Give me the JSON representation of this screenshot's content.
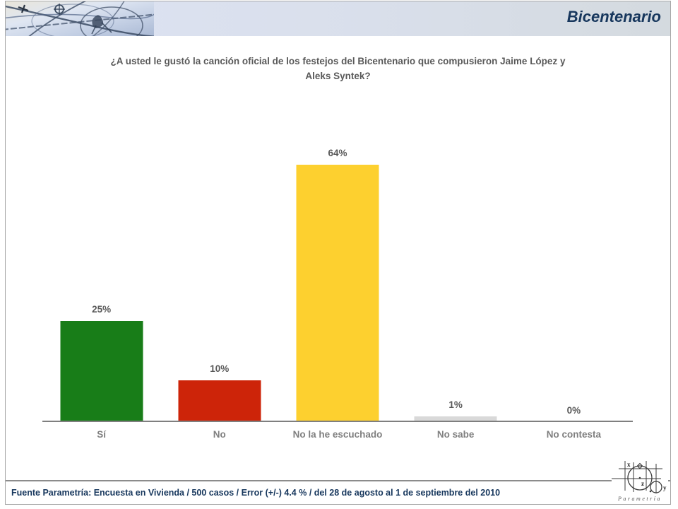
{
  "header": {
    "brand": "Bicentenario",
    "decorative_image": "abstract-pencil-sketch-collage"
  },
  "question": {
    "lines": [
      "¿A usted le gustó la canción oficial de los festejos del Bicentenario que compusieron Jaime López y",
      "Aleks Syntek?"
    ]
  },
  "chart_data": {
    "type": "bar",
    "title": "¿A usted le gustó la canción oficial de los festejos del Bicentenario que compusieron Jaime López y Aleks Syntek?",
    "categories": [
      "Sí",
      "No",
      "No la he escuchado",
      "No sabe",
      "No contesta"
    ],
    "values": [
      25,
      10,
      64,
      1,
      0
    ],
    "value_labels": [
      "25%",
      "10%",
      "64%",
      "1%",
      "0%"
    ],
    "bar_colors": [
      "#187d18",
      "#cd2409",
      "#fdd02f",
      "#d9d9d9",
      "#d9d9d9"
    ],
    "xlabel": "",
    "ylabel": "",
    "ylim": [
      0,
      70
    ],
    "grid": false,
    "legend": false,
    "data_labels": true
  },
  "footer": {
    "source": "Fuente Parametría: Encuesta en Vivienda / 500 casos / Error (+/-) 4.4 % / del 28 de agosto al 1 de septiembre del 2010"
  },
  "logo": {
    "wordmark": "Parametría",
    "axis_labels": [
      "x",
      "z",
      "y"
    ]
  },
  "colors": {
    "brand_text": "#17375d",
    "question_text": "#595959",
    "category_text": "#7f7f7f",
    "axis": "#7f7f7f",
    "frame_border": "#a8a8a8",
    "header_band_start": "#dde3f3",
    "header_band_end": "#d4dadf"
  }
}
